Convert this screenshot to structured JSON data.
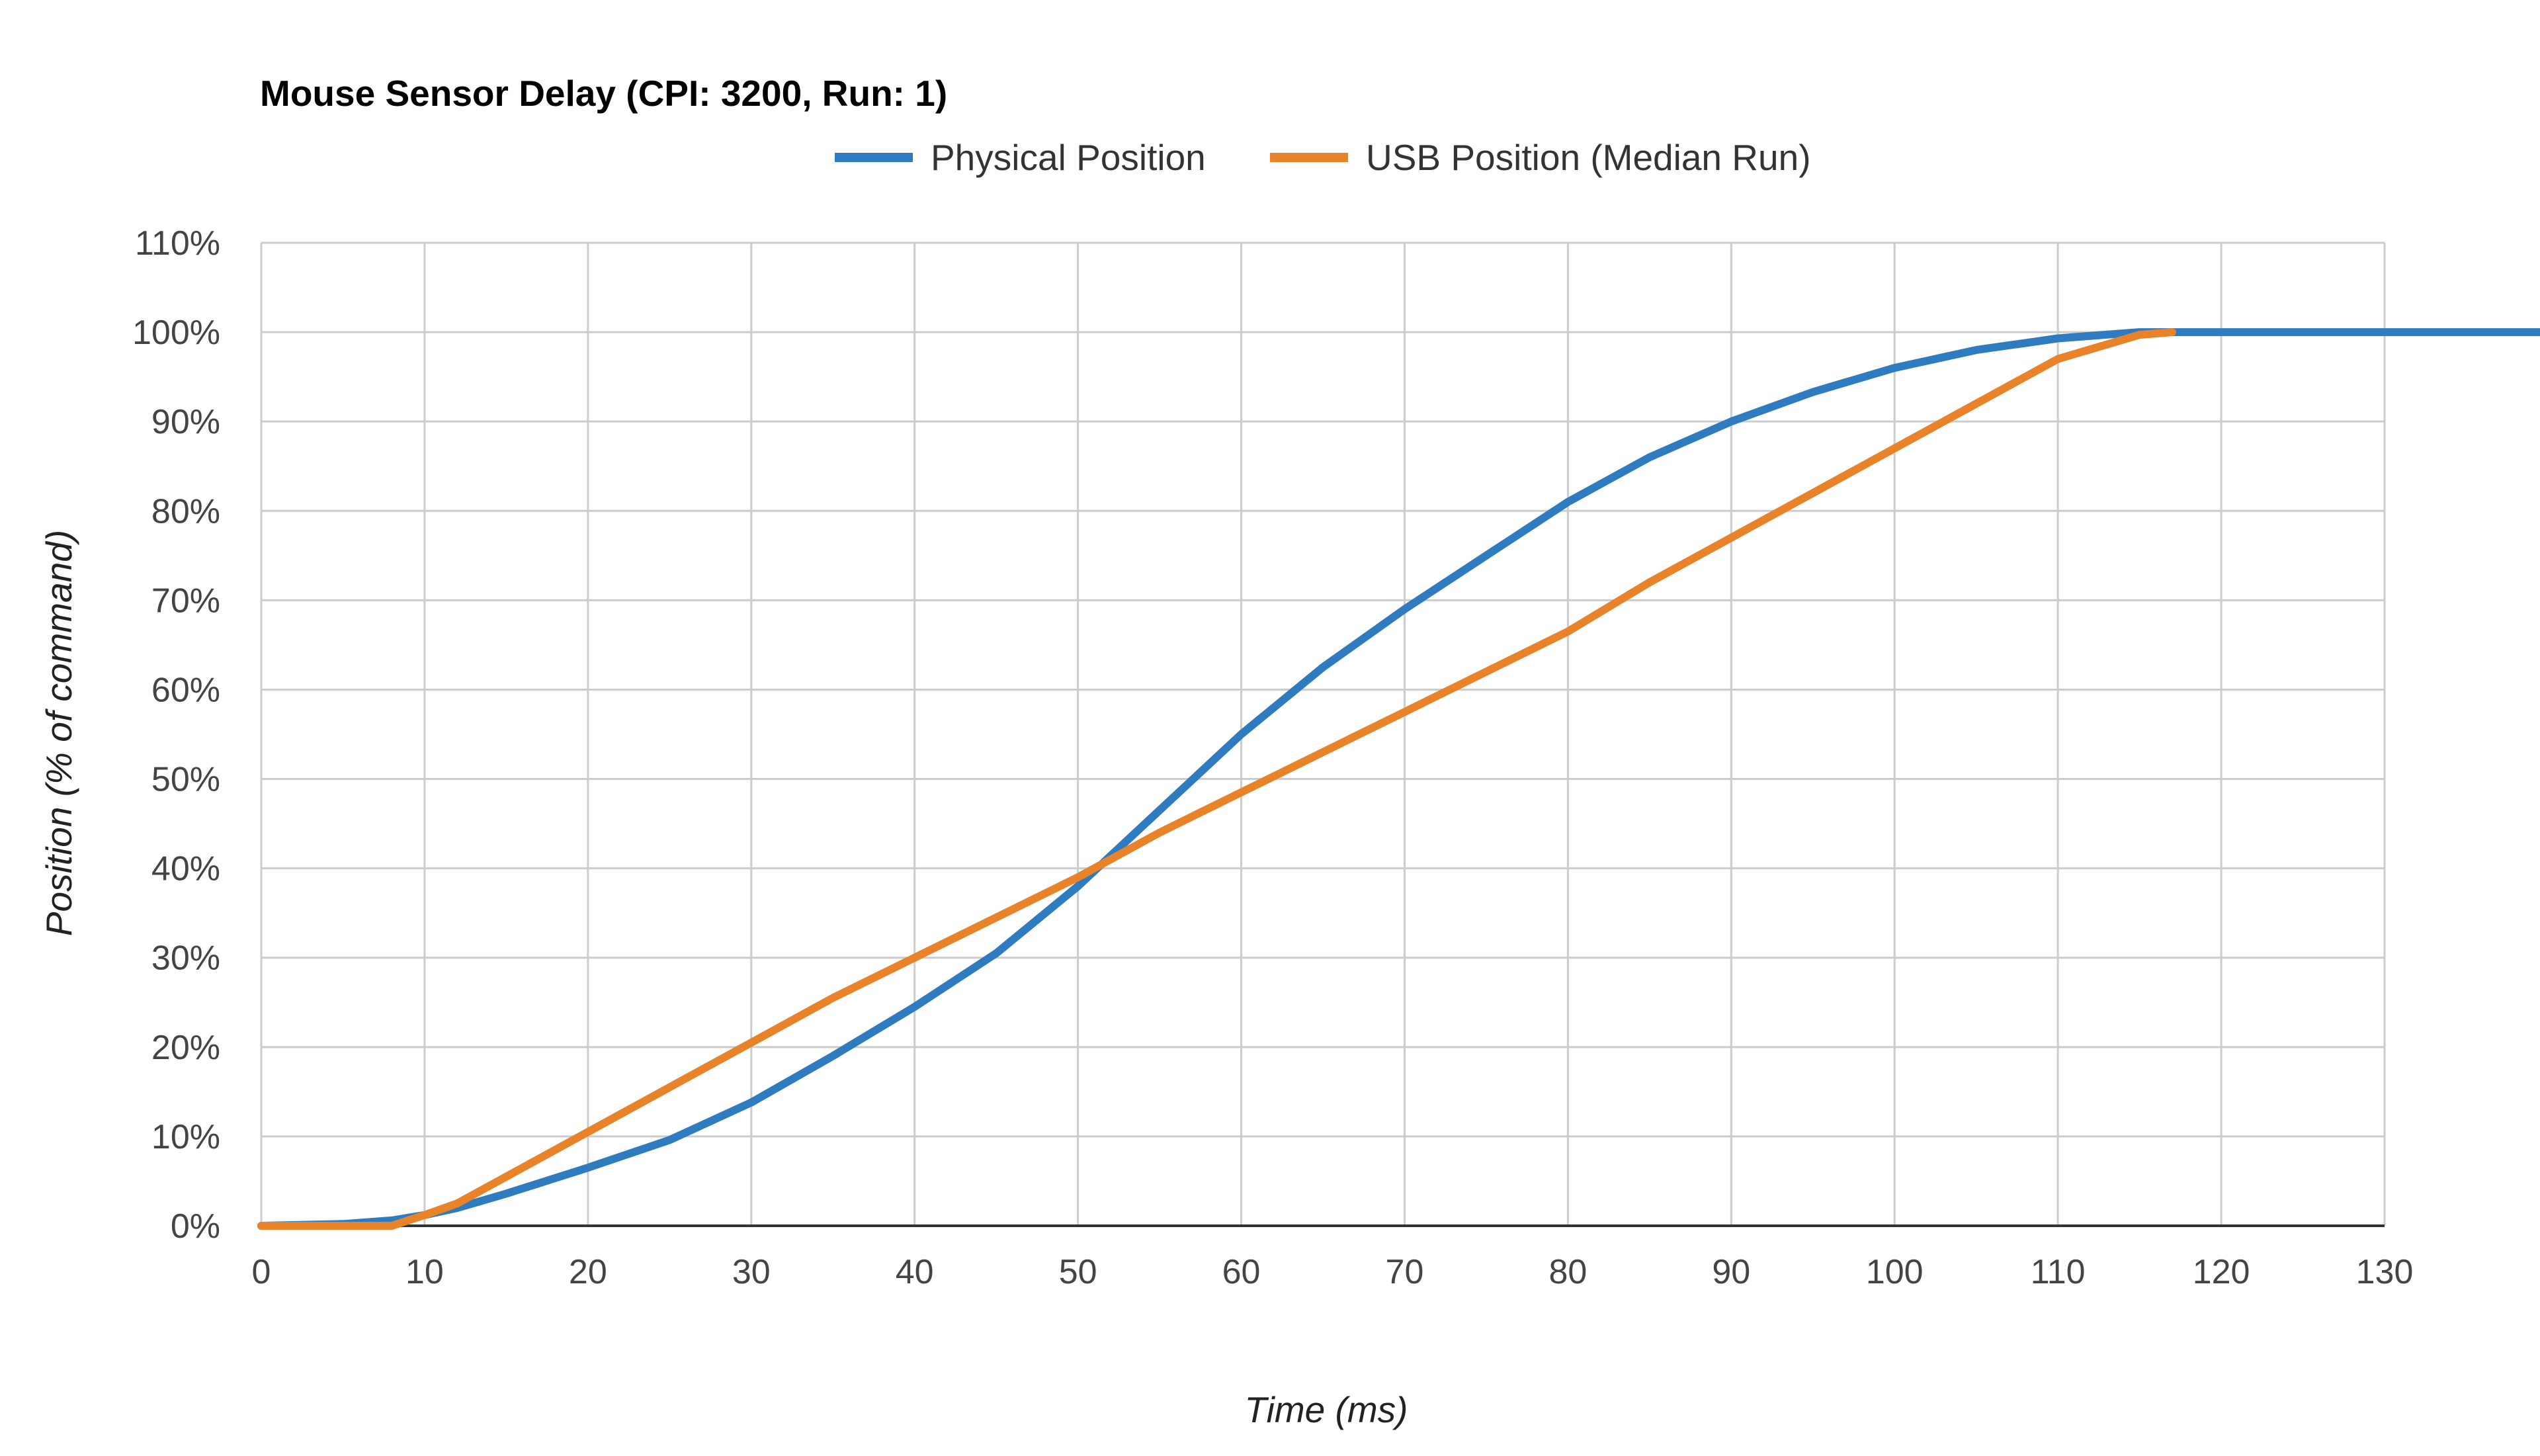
{
  "chart_data": {
    "type": "line",
    "title": "Mouse Sensor Delay (CPI: 3200, Run: 1)",
    "xlabel": "Time (ms)",
    "ylabel": "Position (% of command)",
    "xlim": [
      0,
      130
    ],
    "ylim": [
      0,
      110
    ],
    "x_ticks": [
      0,
      10,
      20,
      30,
      40,
      50,
      60,
      70,
      80,
      90,
      100,
      110,
      120,
      130
    ],
    "y_ticks": [
      0,
      10,
      20,
      30,
      40,
      50,
      60,
      70,
      80,
      90,
      100,
      110
    ],
    "x_tick_labels": [
      "0",
      "10",
      "20",
      "30",
      "40",
      "50",
      "60",
      "70",
      "80",
      "90",
      "100",
      "110",
      "120",
      130
    ],
    "y_tick_labels": [
      "0%",
      "10%",
      "20%",
      "30%",
      "40%",
      "50%",
      "60%",
      "70%",
      "80%",
      "90%",
      "100%",
      "110%"
    ],
    "grid": true,
    "legend_position": "top",
    "series": [
      {
        "name": "Physical Position",
        "color": "#2e7bbf",
        "x": [
          0,
          5,
          8,
          10,
          12,
          15,
          20,
          25,
          30,
          35,
          40,
          45,
          50,
          55,
          60,
          65,
          70,
          75,
          80,
          85,
          90,
          95,
          100,
          105,
          110,
          115,
          120,
          125,
          130,
          140
        ],
        "y": [
          0,
          0.2,
          0.6,
          1.2,
          2,
          3.6,
          6.5,
          9.6,
          13.8,
          19,
          24.5,
          30.5,
          38,
          46.5,
          55,
          62.5,
          69,
          75,
          81,
          86,
          90,
          93.3,
          96,
          98,
          99.3,
          100,
          100,
          100,
          100,
          100
        ]
      },
      {
        "name": "USB Position (Median Run)",
        "color": "#e8832a",
        "x": [
          0,
          6,
          8,
          10,
          12,
          15,
          20,
          25,
          30,
          35,
          40,
          45,
          50,
          55,
          60,
          65,
          70,
          75,
          80,
          85,
          90,
          95,
          100,
          105,
          110,
          115,
          117
        ],
        "y": [
          0,
          0,
          0,
          1.2,
          2.5,
          5.5,
          10.5,
          15.5,
          20.5,
          25.5,
          30,
          34.5,
          39,
          44,
          48.5,
          53,
          57.5,
          62,
          66.5,
          72,
          77,
          82,
          87,
          92,
          97,
          99.7,
          100
        ]
      }
    ]
  }
}
